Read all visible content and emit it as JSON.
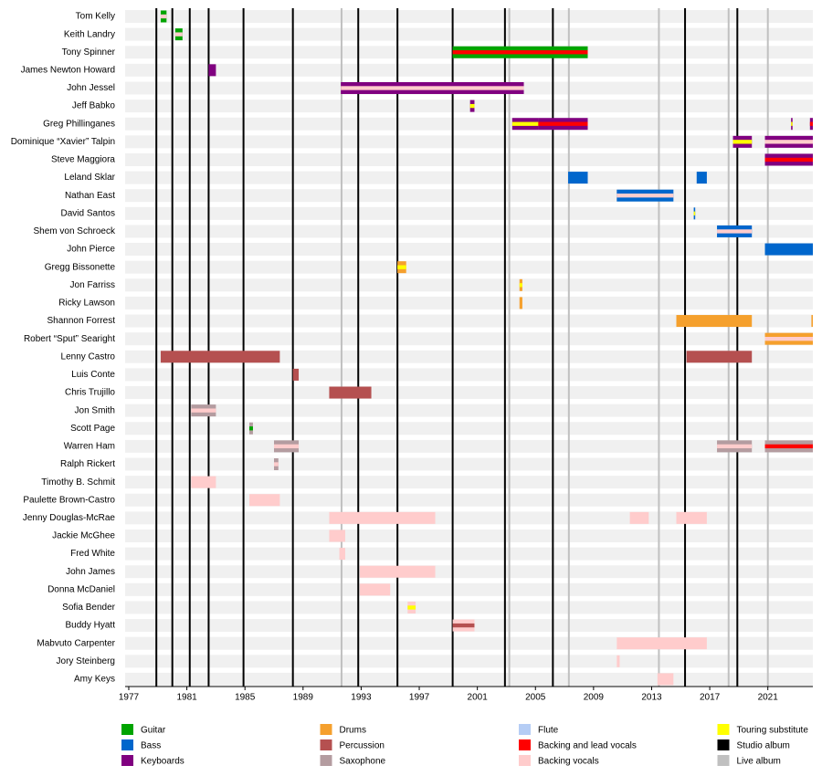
{
  "chart_data": {
    "type": "timeline",
    "xlim": [
      1976.75,
      2024.1
    ],
    "xticks": [
      1977,
      1981,
      1985,
      1989,
      1993,
      1997,
      2001,
      2005,
      2009,
      2013,
      2017,
      2021
    ],
    "roles": [
      {
        "name": "Guitar",
        "color": "#00a400"
      },
      {
        "name": "Bass",
        "color": "#0066cc"
      },
      {
        "name": "Keyboards",
        "color": "#800080"
      },
      {
        "name": "Drums",
        "color": "#f5a02d"
      },
      {
        "name": "Percussion",
        "color": "#b55050"
      },
      {
        "name": "Saxophone",
        "color": "#b49ca0"
      },
      {
        "name": "Flute",
        "color": "#b5cdf5"
      },
      {
        "name": "Backing and lead vocals",
        "color": "#ff0000"
      },
      {
        "name": "Backing vocals",
        "color": "#ffcccc"
      },
      {
        "name": "Touring substitute",
        "color": "#ffff00"
      }
    ],
    "albums": [
      {
        "name": "Studio album",
        "color": "#000000",
        "dates": [
          1978.9,
          1980.0,
          1981.2,
          1982.5,
          1984.9,
          1988.3,
          1992.8,
          1995.5,
          1999.3,
          2002.9,
          2006.2,
          2015.3,
          2018.9
        ]
      },
      {
        "name": "Live album",
        "color": "#c0c0c0",
        "dates": [
          1991.65,
          2003.2,
          2007.3,
          2013.5,
          2018.3,
          2021.0
        ]
      }
    ],
    "members": [
      {
        "name": "Tom Kelly",
        "spans": [
          {
            "roles": [
              "Guitar",
              "Backing vocals"
            ],
            "start": 1979.2,
            "end": 1979.6
          }
        ]
      },
      {
        "name": "Keith Landry",
        "spans": [
          {
            "roles": [
              "Guitar",
              "Backing vocals"
            ],
            "start": 1980.2,
            "end": 1980.7
          }
        ]
      },
      {
        "name": "Tony Spinner",
        "spans": [
          {
            "roles": [
              "Guitar",
              "Backing and lead vocals"
            ],
            "start": 1999.3,
            "end": 2008.6
          }
        ]
      },
      {
        "name": "James Newton Howard",
        "spans": [
          {
            "roles": [
              "Keyboards"
            ],
            "start": 1982.5,
            "end": 1983.0
          }
        ]
      },
      {
        "name": "John Jessel",
        "spans": [
          {
            "roles": [
              "Keyboards",
              "Backing vocals"
            ],
            "start": 1991.6,
            "end": 2004.2
          }
        ]
      },
      {
        "name": "Jeff Babko",
        "spans": [
          {
            "roles": [
              "Keyboards",
              "Touring substitute"
            ],
            "start": 2000.5,
            "end": 2000.8
          }
        ]
      },
      {
        "name": "Greg Phillinganes",
        "spans": [
          {
            "roles": [
              "Keyboards",
              "Touring substitute"
            ],
            "start": 2003.4,
            "end": 2005.2
          },
          {
            "roles": [
              "Keyboards",
              "Backing and lead vocals"
            ],
            "start": 2005.2,
            "end": 2008.6
          },
          {
            "roles": [
              "Keyboards",
              "Touring substitute"
            ],
            "start": 2022.6,
            "end": 2022.7
          },
          {
            "roles": [
              "Keyboards",
              "Backing and lead vocals"
            ],
            "start": 2023.9,
            "end": 2024.1
          }
        ]
      },
      {
        "name": "Dominique “Xavier” Talpin",
        "spans": [
          {
            "roles": [
              "Keyboards",
              "Touring substitute"
            ],
            "start": 2018.6,
            "end": 2019.9
          },
          {
            "roles": [
              "Keyboards",
              "Backing vocals"
            ],
            "start": 2020.8,
            "end": 2024.1
          }
        ]
      },
      {
        "name": "Steve Maggiora",
        "spans": [
          {
            "roles": [
              "Keyboards",
              "Backing and lead vocals"
            ],
            "start": 2020.8,
            "end": 2024.1
          }
        ]
      },
      {
        "name": "Leland Sklar",
        "spans": [
          {
            "roles": [
              "Bass"
            ],
            "start": 2007.25,
            "end": 2008.6
          },
          {
            "roles": [
              "Bass"
            ],
            "start": 2016.1,
            "end": 2016.8
          }
        ]
      },
      {
        "name": "Nathan East",
        "spans": [
          {
            "roles": [
              "Bass",
              "Backing vocals"
            ],
            "start": 2010.6,
            "end": 2014.5
          }
        ]
      },
      {
        "name": "David Santos",
        "spans": [
          {
            "roles": [
              "Bass",
              "Touring substitute"
            ],
            "start": 2015.9,
            "end": 2016.0
          }
        ]
      },
      {
        "name": "Shem von Schroeck",
        "spans": [
          {
            "roles": [
              "Bass",
              "Backing vocals"
            ],
            "start": 2017.5,
            "end": 2019.9
          }
        ]
      },
      {
        "name": "John Pierce",
        "spans": [
          {
            "roles": [
              "Bass"
            ],
            "start": 2020.8,
            "end": 2024.1
          }
        ]
      },
      {
        "name": "Gregg Bissonette",
        "spans": [
          {
            "roles": [
              "Drums",
              "Touring substitute"
            ],
            "start": 1995.5,
            "end": 1996.1
          }
        ]
      },
      {
        "name": "Jon Farriss",
        "spans": [
          {
            "roles": [
              "Drums",
              "Touring substitute"
            ],
            "start": 2003.9,
            "end": 2004.1
          }
        ]
      },
      {
        "name": "Ricky Lawson",
        "spans": [
          {
            "roles": [
              "Drums"
            ],
            "start": 2003.9,
            "end": 2004.1
          }
        ]
      },
      {
        "name": "Shannon Forrest",
        "spans": [
          {
            "roles": [
              "Drums"
            ],
            "start": 2014.7,
            "end": 2019.9
          },
          {
            "roles": [
              "Drums"
            ],
            "start": 2024.0,
            "end": 2024.1
          }
        ]
      },
      {
        "name": "Robert “Sput” Searight",
        "spans": [
          {
            "roles": [
              "Drums",
              "Backing vocals"
            ],
            "start": 2020.8,
            "end": 2024.1
          }
        ]
      },
      {
        "name": "Lenny Castro",
        "spans": [
          {
            "roles": [
              "Percussion"
            ],
            "start": 1979.2,
            "end": 1987.4
          },
          {
            "roles": [
              "Percussion"
            ],
            "start": 2015.4,
            "end": 2019.9
          }
        ]
      },
      {
        "name": "Luis Conte",
        "spans": [
          {
            "roles": [
              "Percussion"
            ],
            "start": 1988.3,
            "end": 1988.7
          }
        ]
      },
      {
        "name": "Chris Trujillo",
        "spans": [
          {
            "roles": [
              "Percussion"
            ],
            "start": 1990.8,
            "end": 1993.7
          }
        ]
      },
      {
        "name": "Jon Smith",
        "spans": [
          {
            "roles": [
              "Saxophone",
              "Backing vocals"
            ],
            "start": 1981.3,
            "end": 1983.0
          }
        ]
      },
      {
        "name": "Scott Page",
        "spans": [
          {
            "roles": [
              "Saxophone",
              "Guitar"
            ],
            "start": 1985.3,
            "end": 1985.55
          }
        ]
      },
      {
        "name": "Warren Ham",
        "spans": [
          {
            "roles": [
              "Saxophone",
              "Backing vocals"
            ],
            "start": 1987.0,
            "end": 1988.7
          },
          {
            "roles": [
              "Saxophone",
              "Backing vocals"
            ],
            "start": 2017.5,
            "end": 2019.9
          },
          {
            "roles": [
              "Saxophone",
              "Backing and lead vocals"
            ],
            "start": 2020.8,
            "end": 2024.1
          }
        ]
      },
      {
        "name": "Ralph Rickert",
        "spans": [
          {
            "roles": [
              "Saxophone",
              "Backing vocals"
            ],
            "start": 1987.0,
            "end": 1987.3
          }
        ]
      },
      {
        "name": "Timothy B. Schmit",
        "spans": [
          {
            "roles": [
              "Backing vocals"
            ],
            "start": 1981.3,
            "end": 1983.0
          }
        ]
      },
      {
        "name": "Paulette Brown-Castro",
        "spans": [
          {
            "roles": [
              "Backing vocals"
            ],
            "start": 1985.3,
            "end": 1987.4
          }
        ]
      },
      {
        "name": "Jenny Douglas-McRae",
        "spans": [
          {
            "roles": [
              "Backing vocals"
            ],
            "start": 1990.8,
            "end": 1998.1
          },
          {
            "roles": [
              "Backing vocals"
            ],
            "start": 2011.5,
            "end": 2012.8
          },
          {
            "roles": [
              "Backing vocals"
            ],
            "start": 2014.7,
            "end": 2016.8
          }
        ]
      },
      {
        "name": "Jackie McGhee",
        "spans": [
          {
            "roles": [
              "Backing vocals"
            ],
            "start": 1990.8,
            "end": 1991.9
          }
        ]
      },
      {
        "name": "Fred White",
        "spans": [
          {
            "roles": [
              "Backing vocals"
            ],
            "start": 1991.5,
            "end": 1991.9
          }
        ]
      },
      {
        "name": "John James",
        "spans": [
          {
            "roles": [
              "Backing vocals"
            ],
            "start": 1992.9,
            "end": 1998.1
          }
        ]
      },
      {
        "name": "Donna McDaniel",
        "spans": [
          {
            "roles": [
              "Backing vocals"
            ],
            "start": 1992.9,
            "end": 1995.0
          }
        ]
      },
      {
        "name": "Sofia Bender",
        "spans": [
          {
            "roles": [
              "Backing vocals",
              "Touring substitute"
            ],
            "start": 1996.2,
            "end": 1996.75
          }
        ]
      },
      {
        "name": "Buddy Hyatt",
        "spans": [
          {
            "roles": [
              "Backing vocals",
              "Percussion"
            ],
            "start": 1999.3,
            "end": 2000.8
          }
        ]
      },
      {
        "name": "Mabvuto Carpenter",
        "spans": [
          {
            "roles": [
              "Backing vocals"
            ],
            "start": 2010.6,
            "end": 2016.8
          }
        ]
      },
      {
        "name": "Jory Steinberg",
        "spans": [
          {
            "roles": [
              "Backing vocals"
            ],
            "start": 2010.6,
            "end": 2010.8
          }
        ]
      },
      {
        "name": "Amy Keys",
        "spans": [
          {
            "roles": [
              "Backing vocals"
            ],
            "start": 2013.4,
            "end": 2014.5
          }
        ]
      }
    ]
  }
}
